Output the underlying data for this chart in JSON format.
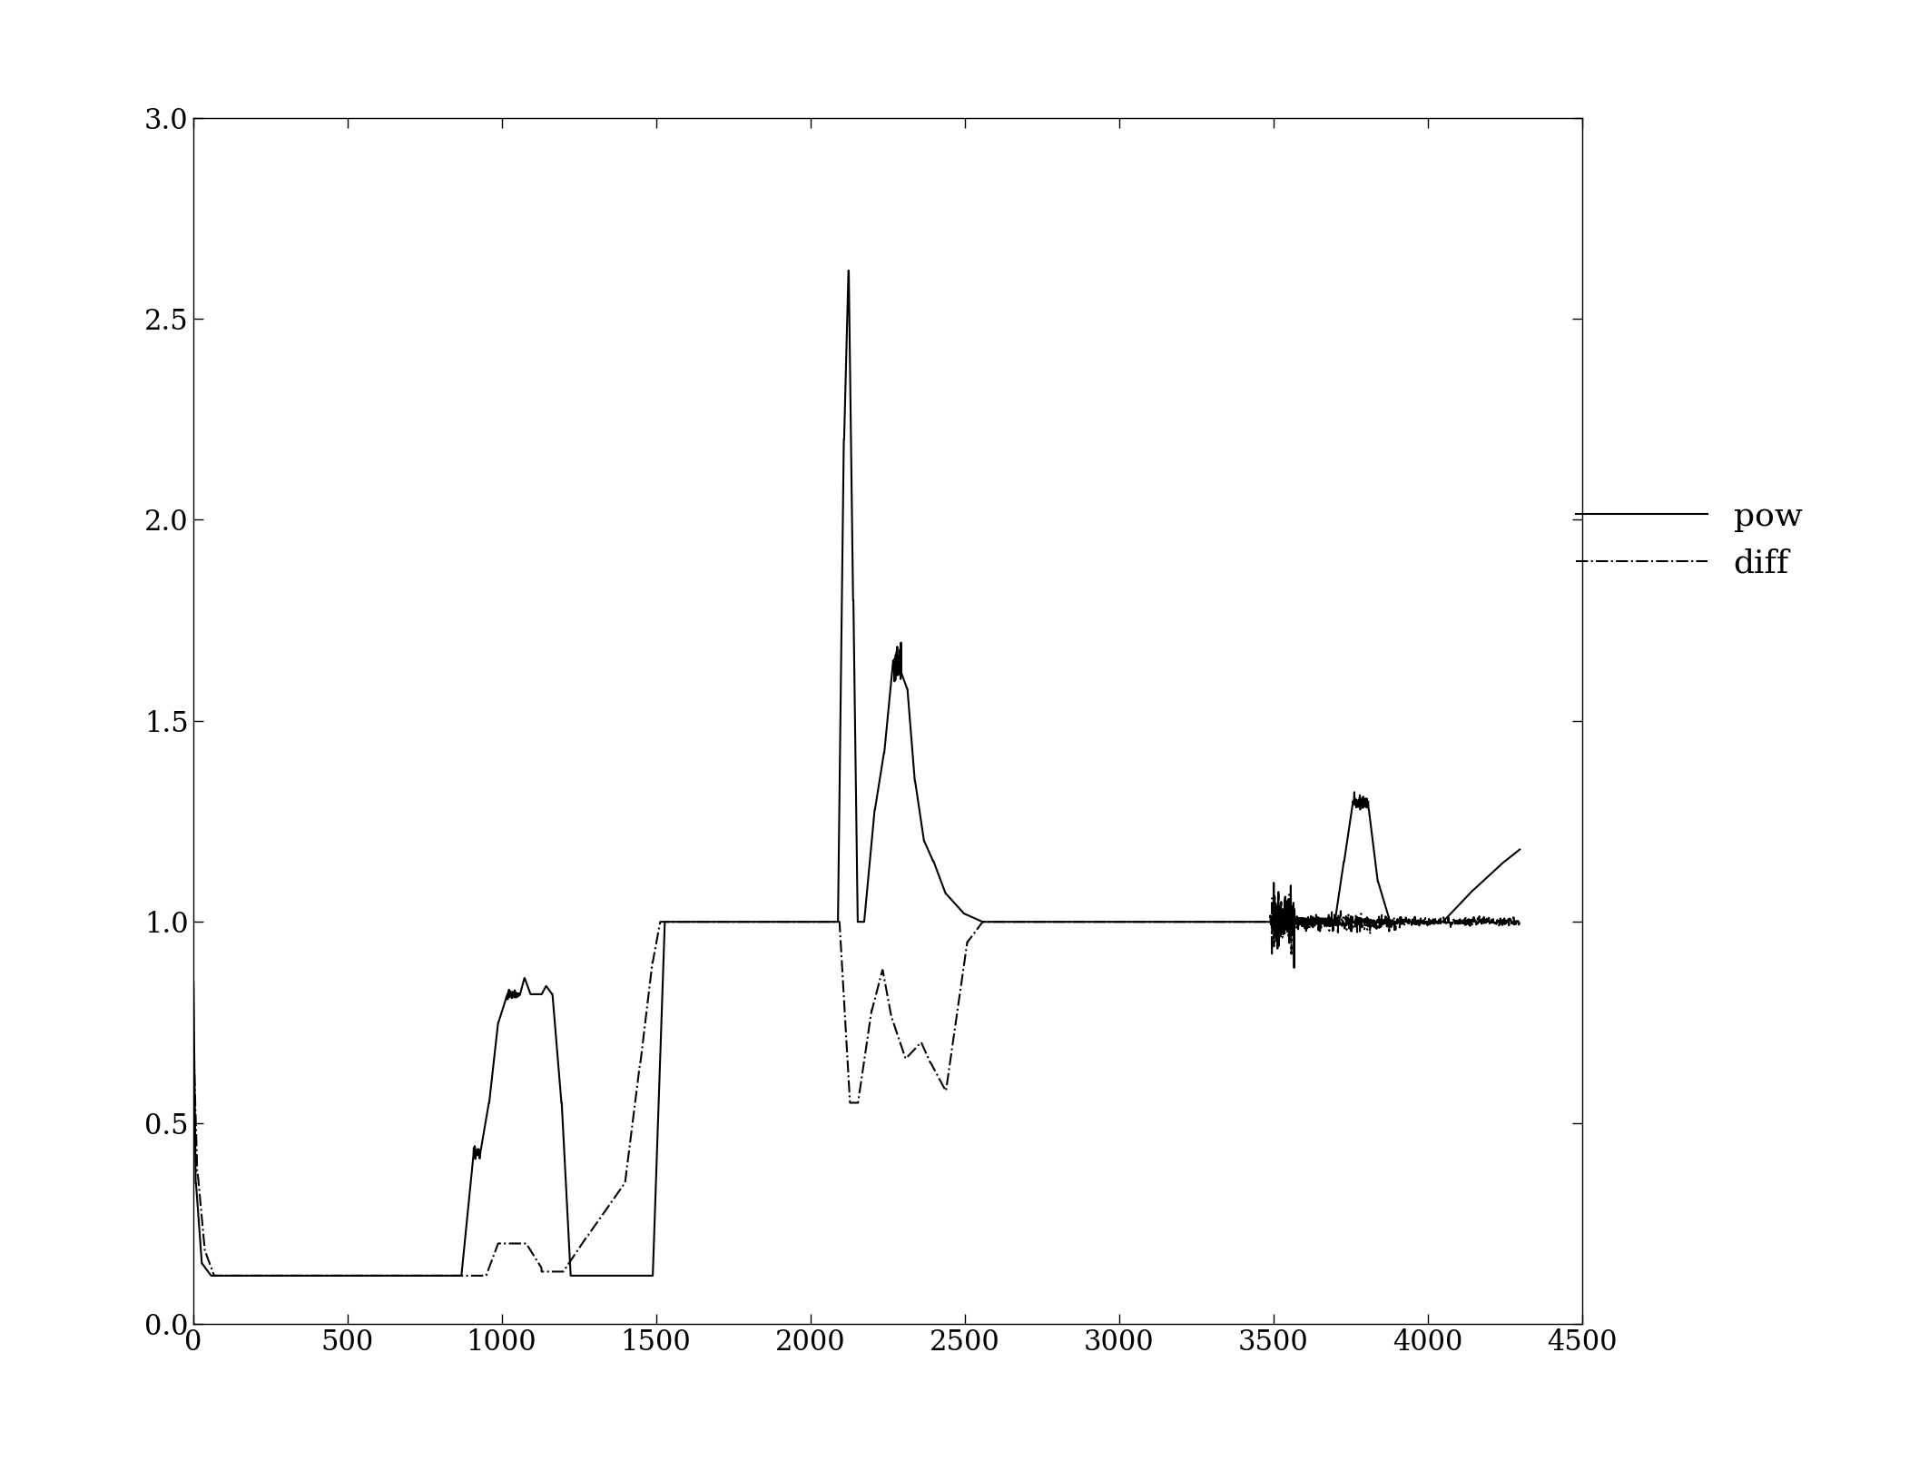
{
  "xlim": [
    0,
    4500
  ],
  "ylim": [
    0,
    3
  ],
  "yticks": [
    0,
    0.5,
    1.0,
    1.5,
    2.0,
    2.5,
    3.0
  ],
  "xticks": [
    0,
    500,
    1000,
    1500,
    2000,
    2500,
    3000,
    3500,
    4000,
    4500
  ],
  "legend_labels": [
    "pow",
    "diff"
  ],
  "line_color": "#000000",
  "background_color": "#ffffff",
  "figsize": [
    21.25,
    16.2
  ],
  "dpi": 100,
  "tick_labelsize": 22,
  "legend_fontsize": 26
}
